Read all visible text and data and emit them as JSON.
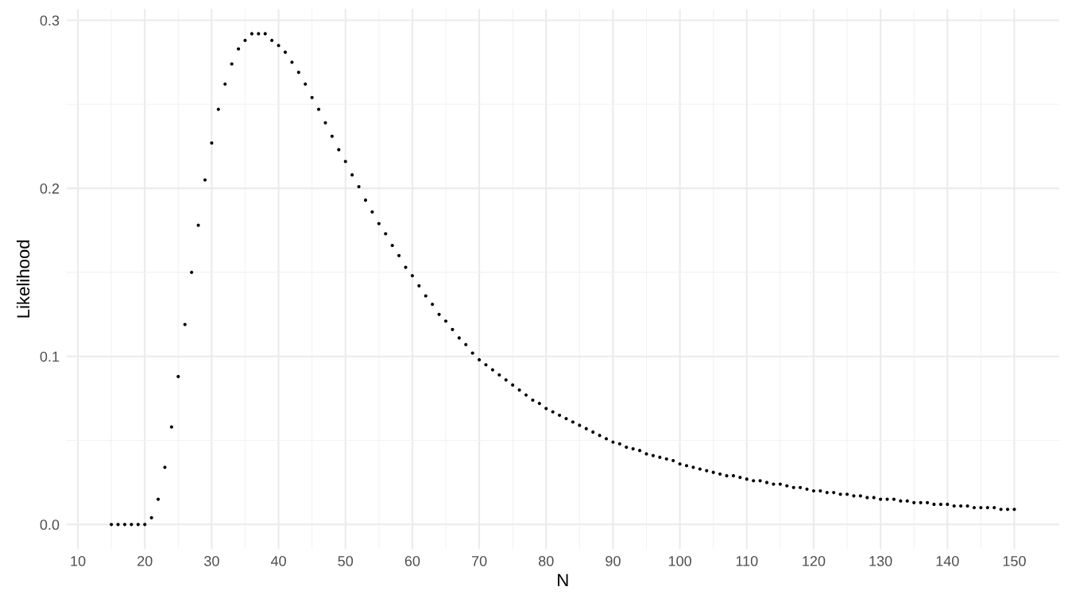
{
  "chart_data": {
    "type": "scatter",
    "xlabel": "N",
    "ylabel": "Likelihood",
    "x": [
      15,
      16,
      17,
      18,
      19,
      20,
      21,
      22,
      23,
      24,
      25,
      26,
      27,
      28,
      29,
      30,
      31,
      32,
      33,
      34,
      35,
      36,
      37,
      38,
      39,
      40,
      41,
      42,
      43,
      44,
      45,
      46,
      47,
      48,
      49,
      50,
      51,
      52,
      53,
      54,
      55,
      56,
      57,
      58,
      59,
      60,
      61,
      62,
      63,
      64,
      65,
      66,
      67,
      68,
      69,
      70,
      71,
      72,
      73,
      74,
      75,
      76,
      77,
      78,
      79,
      80,
      81,
      82,
      83,
      84,
      85,
      86,
      87,
      88,
      89,
      90,
      91,
      92,
      93,
      94,
      95,
      96,
      97,
      98,
      99,
      100,
      101,
      102,
      103,
      104,
      105,
      106,
      107,
      108,
      109,
      110,
      111,
      112,
      113,
      114,
      115,
      116,
      117,
      118,
      119,
      120,
      121,
      122,
      123,
      124,
      125,
      126,
      127,
      128,
      129,
      130,
      131,
      132,
      133,
      134,
      135,
      136,
      137,
      138,
      139,
      140,
      141,
      142,
      143,
      144,
      145,
      146,
      147,
      148,
      149,
      150
    ],
    "series": [
      {
        "color": "#000000",
        "values": [
          0,
          0,
          0,
          0,
          0,
          0,
          0.004,
          0.015,
          0.034,
          0.058,
          0.088,
          0.119,
          0.15,
          0.178,
          0.205,
          0.227,
          0.247,
          0.262,
          0.274,
          0.283,
          0.288,
          0.292,
          0.292,
          0.292,
          0.288,
          0.285,
          0.281,
          0.275,
          0.269,
          0.262,
          0.254,
          0.247,
          0.239,
          0.231,
          0.223,
          0.216,
          0.208,
          0.201,
          0.193,
          0.186,
          0.179,
          0.173,
          0.166,
          0.16,
          0.153,
          0.148,
          0.142,
          0.136,
          0.131,
          0.125,
          0.121,
          0.116,
          0.111,
          0.107,
          0.102,
          0.098,
          0.095,
          0.092,
          0.089,
          0.086,
          0.083,
          0.08,
          0.077,
          0.074,
          0.072,
          0.069,
          0.067,
          0.065,
          0.063,
          0.061,
          0.059,
          0.057,
          0.055,
          0.053,
          0.051,
          0.049,
          0.048,
          0.046,
          0.045,
          0.044,
          0.042,
          0.041,
          0.04,
          0.039,
          0.038,
          0.036,
          0.035,
          0.034,
          0.033,
          0.032,
          0.031,
          0.03,
          0.029,
          0.029,
          0.028,
          0.027,
          0.026,
          0.026,
          0.025,
          0.024,
          0.024,
          0.023,
          0.022,
          0.022,
          0.021,
          0.02,
          0.02,
          0.019,
          0.019,
          0.018,
          0.018,
          0.017,
          0.017,
          0.016,
          0.016,
          0.015,
          0.015,
          0.015,
          0.014,
          0.014,
          0.013,
          0.013,
          0.013,
          0.012,
          0.012,
          0.012,
          0.011,
          0.011,
          0.011,
          0.01,
          0.01,
          0.01,
          0.01,
          0.009,
          0.009,
          0.009
        ]
      }
    ],
    "xlim": [
      8.25,
      156.75
    ],
    "ylim": [
      -0.0146,
      0.3066
    ],
    "xticks": [
      10,
      20,
      30,
      40,
      50,
      60,
      70,
      80,
      90,
      100,
      110,
      120,
      130,
      140,
      150
    ],
    "yticks": [
      {
        "value": 0,
        "label": "0.0"
      },
      0.1,
      0.2,
      0.3
    ],
    "grid": true,
    "marker": "circle"
  }
}
